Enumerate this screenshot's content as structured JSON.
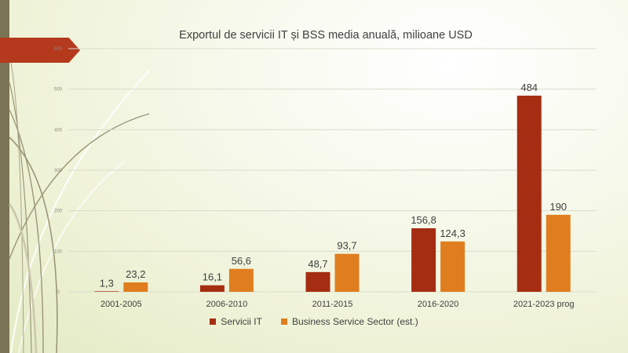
{
  "chart_data": {
    "type": "bar",
    "title": "Exportul de servicii IT și BSS media anuală, milioane USD",
    "categories": [
      "2001-2005",
      "2006-2010",
      "2011-2015",
      "2016-2020",
      "2021-2023 prog"
    ],
    "series": [
      {
        "name": "Servicii IT",
        "color": "#a52d12",
        "values": [
          1.3,
          16.1,
          48.7,
          156.8,
          484
        ],
        "labels": [
          "1,3",
          "16,1",
          "48,7",
          "156,8",
          "484"
        ]
      },
      {
        "name": "Business Service Sector (est.)",
        "color": "#e07e1f",
        "values": [
          23.2,
          56.6,
          93.7,
          124.3,
          190
        ],
        "labels": [
          "23,2",
          "56,6",
          "93,7",
          "124,3",
          "190"
        ]
      }
    ],
    "yticks": [
      "0",
      "100",
      "200",
      "300",
      "400",
      "500",
      "600"
    ],
    "ylim": [
      0,
      600
    ],
    "xlabel": "",
    "ylabel": "",
    "grid": true,
    "legend_position": "bottom"
  }
}
